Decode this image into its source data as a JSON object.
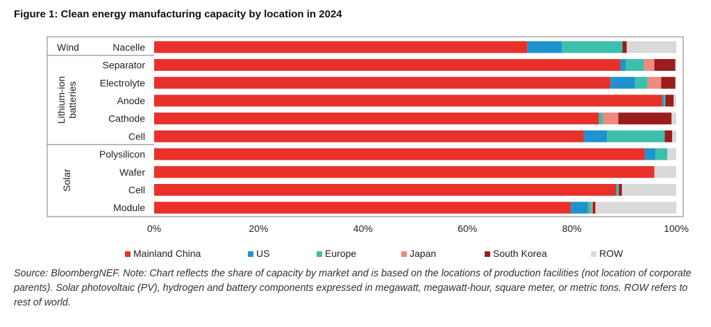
{
  "figure_title": "Figure 1:  Clean energy manufacturing capacity by location in 2024",
  "source_note": "Source: BloombergNEF. Note: Chart reflects the share of capacity by market and is based on the locations of production facilities (not location of corporate parents). Solar photovoltaic (PV), hydrogen and battery components expressed in megawatt, megawatt-hour, square meter, or metric tons. ROW refers to rest of world.",
  "colors": {
    "Mainland China": "#e8312b",
    "US": "#1f93d0",
    "Europe": "#3dbfae",
    "Japan": "#f08a7e",
    "South Korea": "#9b1c1c",
    "ROW": "#d9d9d9"
  },
  "chart_data": {
    "type": "bar",
    "orientation": "horizontal",
    "stacked": true,
    "groups": [
      {
        "label": "Wind",
        "categories": [
          "Nacelle"
        ]
      },
      {
        "label": "Lithium-ion batteries",
        "categories": [
          "Separator",
          "Electrolyte",
          "Anode",
          "Cathode",
          "Cell"
        ]
      },
      {
        "label": "Solar",
        "categories": [
          "Polysilicon",
          "Wafer",
          "Cell",
          "Module"
        ]
      }
    ],
    "categories": [
      "Nacelle",
      "Separator",
      "Electrolyte",
      "Anode",
      "Cathode",
      "Cell",
      "Polysilicon",
      "Wafer",
      "Cell",
      "Module"
    ],
    "series": [
      {
        "name": "Mainland China",
        "values": [
          71.5,
          89.3,
          87.4,
          97.3,
          85.2,
          82.3,
          94.0,
          95.8,
          88.5,
          79.8
        ]
      },
      {
        "name": "US",
        "values": [
          6.6,
          1.0,
          4.7,
          0.3,
          0.0,
          4.4,
          2.0,
          0.0,
          0.0,
          3.3
        ]
      },
      {
        "name": "Europe",
        "values": [
          11.6,
          3.5,
          2.4,
          0.3,
          0.8,
          11.1,
          2.3,
          0.0,
          0.5,
          0.6
        ]
      },
      {
        "name": "Japan",
        "values": [
          0.0,
          2.0,
          2.6,
          0.0,
          2.9,
          0.0,
          0.0,
          0.0,
          0.0,
          0.3
        ]
      },
      {
        "name": "South Korea",
        "values": [
          0.8,
          4.0,
          2.7,
          1.6,
          10.2,
          1.4,
          0.0,
          0.0,
          0.6,
          0.5
        ]
      },
      {
        "name": "ROW",
        "values": [
          9.5,
          0.2,
          0.2,
          0.5,
          0.9,
          0.8,
          1.7,
          4.2,
          10.4,
          15.5
        ]
      }
    ],
    "xlim": [
      0,
      100
    ],
    "xticks": [
      "0%",
      "20%",
      "40%",
      "60%",
      "80%",
      "100%"
    ],
    "grid": false,
    "legend_position": "bottom"
  }
}
